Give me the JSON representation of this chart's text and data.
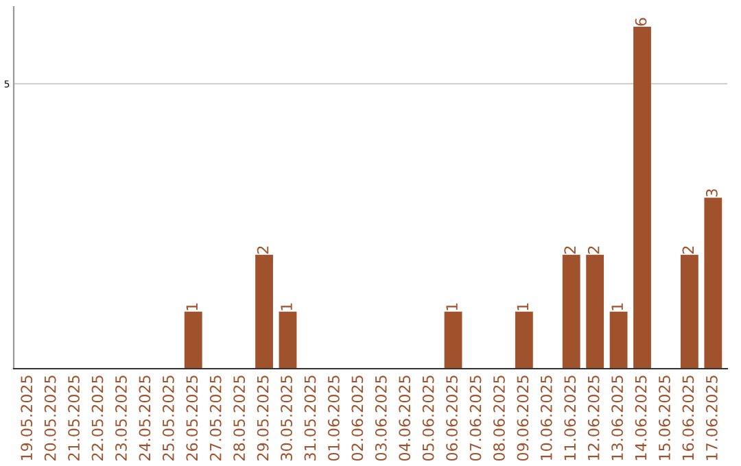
{
  "chart_data": {
    "type": "bar",
    "categories": [
      "19.05.2025",
      "20.05.2025",
      "21.05.2025",
      "22.05.2025",
      "23.05.2025",
      "24.05.2025",
      "25.05.2025",
      "26.05.2025",
      "27.05.2025",
      "28.05.2025",
      "29.05.2025",
      "30.05.2025",
      "31.05.2025",
      "01.06.2025",
      "02.06.2025",
      "03.06.2025",
      "04.06.2025",
      "05.06.2025",
      "06.06.2025",
      "07.06.2025",
      "08.06.2025",
      "09.06.2025",
      "10.06.2025",
      "11.06.2025",
      "12.06.2025",
      "13.06.2025",
      "14.06.2025",
      "15.06.2025",
      "16.06.2025",
      "17.06.2025"
    ],
    "values": [
      0,
      0,
      0,
      0,
      0,
      0,
      0,
      1,
      0,
      0,
      2,
      1,
      0,
      0,
      0,
      0,
      0,
      0,
      1,
      0,
      0,
      1,
      0,
      2,
      2,
      1,
      6,
      0,
      2,
      3
    ],
    "value_labels": [
      null,
      null,
      null,
      null,
      null,
      null,
      null,
      "1",
      null,
      null,
      "2",
      "1",
      null,
      null,
      null,
      null,
      null,
      null,
      "1",
      null,
      null,
      "1",
      null,
      "2",
      "2",
      "1",
      "6",
      null,
      "2",
      "3"
    ],
    "color": "#a0522d",
    "ylim": [
      0,
      6.35
    ],
    "yticks": [
      5
    ],
    "grid": "y"
  }
}
